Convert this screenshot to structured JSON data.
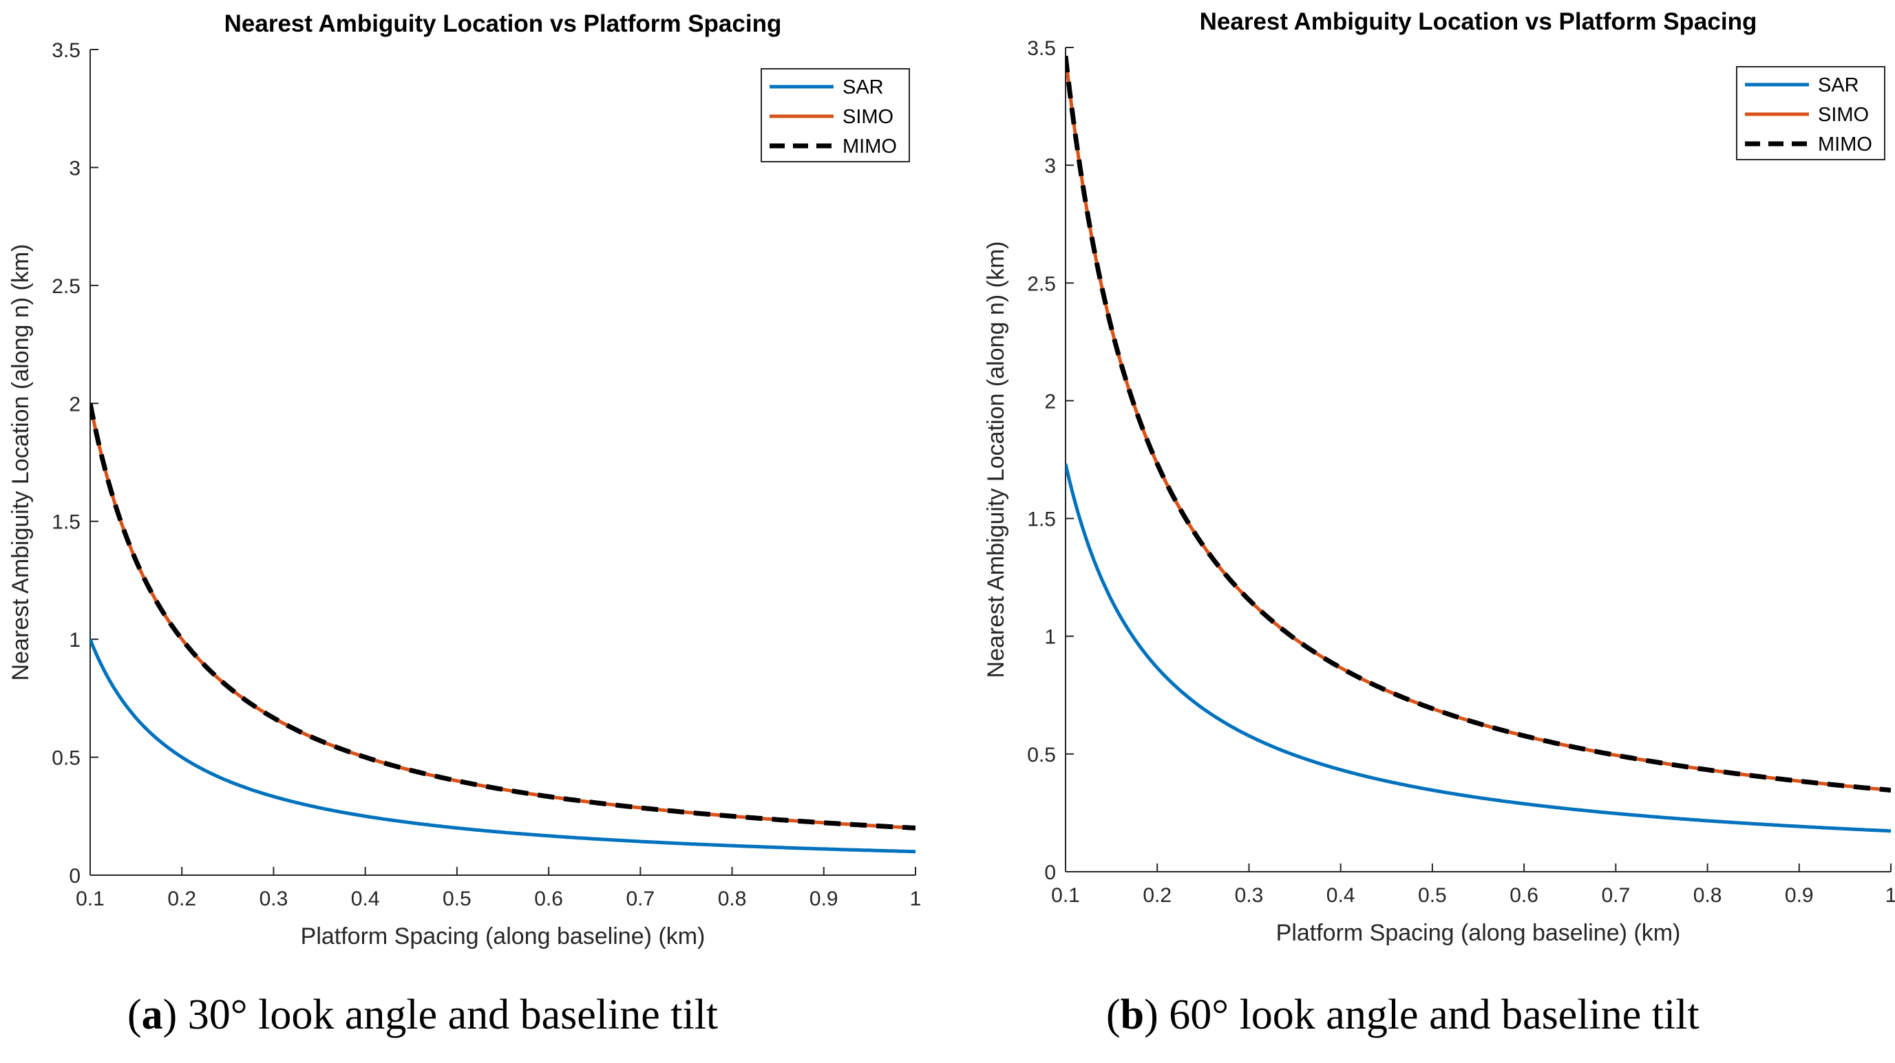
{
  "chart_data": [
    {
      "type": "line",
      "title": "Nearest Ambiguity Location vs Platform Spacing",
      "xlabel": "Platform Spacing (along baseline) (km)",
      "ylabel": "Nearest Ambiguity Location (along n) (km)",
      "xlim": [
        0.1,
        1
      ],
      "ylim": [
        0,
        3.5
      ],
      "xticks": [
        "0.1",
        "0.2",
        "0.3",
        "0.4",
        "0.5",
        "0.6",
        "0.7",
        "0.8",
        "0.9",
        "1"
      ],
      "yticks": [
        "0",
        "0.5",
        "1",
        "1.5",
        "2",
        "2.5",
        "3",
        "3.5"
      ],
      "legend": "top-right",
      "x": [
        0.1,
        0.15,
        0.2,
        0.25,
        0.3,
        0.4,
        0.5,
        0.6,
        0.7,
        0.8,
        0.9,
        1.0
      ],
      "series": [
        {
          "name": "SAR",
          "color": "#0072BD",
          "style": "solid",
          "values": [
            1.0,
            0.667,
            0.5,
            0.4,
            0.333,
            0.25,
            0.2,
            0.167,
            0.143,
            0.125,
            0.111,
            0.1
          ]
        },
        {
          "name": "SIMO",
          "color": "#D95319",
          "style": "solid",
          "values": [
            2.0,
            1.333,
            1.0,
            0.8,
            0.667,
            0.5,
            0.4,
            0.333,
            0.286,
            0.25,
            0.222,
            0.2
          ]
        },
        {
          "name": "MIMO",
          "color": "#000000",
          "style": "dashed",
          "values": [
            2.0,
            1.333,
            1.0,
            0.8,
            0.667,
            0.5,
            0.4,
            0.333,
            0.286,
            0.25,
            0.222,
            0.2
          ]
        }
      ],
      "caption": {
        "label": "a",
        "text": ") 30° look angle and baseline tilt"
      }
    },
    {
      "type": "line",
      "title": "Nearest Ambiguity Location vs Platform Spacing",
      "xlabel": "Platform Spacing (along baseline) (km)",
      "ylabel": "Nearest Ambiguity Location (along n) (km)",
      "xlim": [
        0.1,
        1
      ],
      "ylim": [
        0,
        3.5
      ],
      "xticks": [
        "0.1",
        "0.2",
        "0.3",
        "0.4",
        "0.5",
        "0.6",
        "0.7",
        "0.8",
        "0.9",
        "1"
      ],
      "yticks": [
        "0",
        "0.5",
        "1",
        "1.5",
        "2",
        "2.5",
        "3",
        "3.5"
      ],
      "legend": "top-right",
      "x": [
        0.1,
        0.15,
        0.2,
        0.25,
        0.3,
        0.4,
        0.5,
        0.6,
        0.7,
        0.8,
        0.9,
        1.0
      ],
      "series": [
        {
          "name": "SAR",
          "color": "#0072BD",
          "style": "solid",
          "values": [
            1.732,
            1.155,
            0.866,
            0.693,
            0.577,
            0.433,
            0.346,
            0.289,
            0.247,
            0.217,
            0.192,
            0.173
          ]
        },
        {
          "name": "SIMO",
          "color": "#D95319",
          "style": "solid",
          "values": [
            3.464,
            2.309,
            1.732,
            1.386,
            1.155,
            0.866,
            0.693,
            0.577,
            0.495,
            0.433,
            0.385,
            0.346
          ]
        },
        {
          "name": "MIMO",
          "color": "#000000",
          "style": "dashed",
          "values": [
            3.464,
            2.309,
            1.732,
            1.386,
            1.155,
            0.866,
            0.693,
            0.577,
            0.495,
            0.433,
            0.385,
            0.346
          ]
        }
      ],
      "caption": {
        "label": "b",
        "text": ") 60° look angle and baseline tilt"
      }
    }
  ]
}
